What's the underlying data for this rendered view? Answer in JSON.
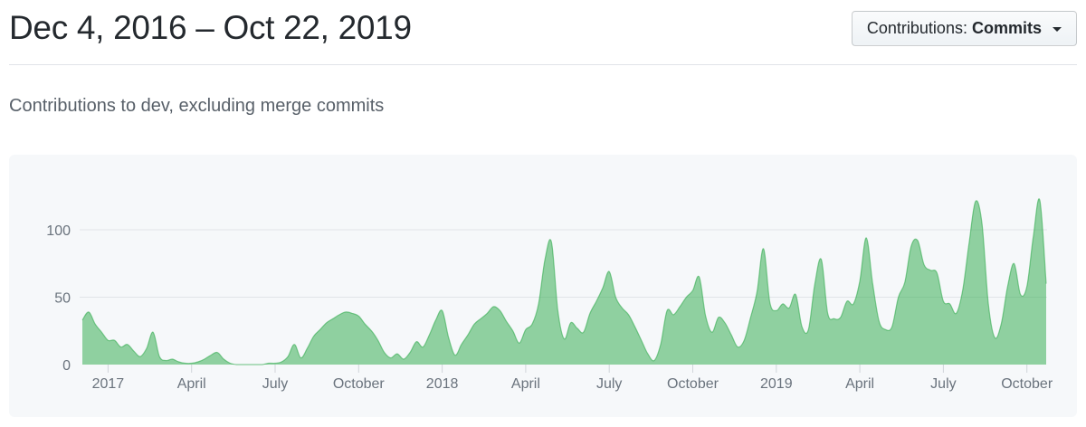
{
  "header": {
    "title": "Dec 4, 2016 – Oct 22, 2019",
    "contributions_dropdown": {
      "prefix": "Contributions:",
      "selected": "Commits"
    }
  },
  "subtitle": "Contributions to dev, excluding merge commits",
  "colors": {
    "area_green": "#28a745",
    "grid": "#e1e4e8",
    "tick": "#d1d5da",
    "axis_text": "#6a737d",
    "title_text": "#24292e",
    "subtitle_text": "#586069",
    "card_background": "#f6f8fa"
  },
  "chart_data": {
    "type": "area",
    "title": "Contributions to dev, excluding merge commits",
    "series_name": "Commits",
    "x_unit": "week",
    "date_range": {
      "start": "Dec 4, 2016",
      "end": "Oct 22, 2019"
    },
    "grid": true,
    "y_ticks": [
      0,
      50,
      100
    ],
    "ylim": [
      0,
      130
    ],
    "x_ticks": [
      {
        "label": "2017",
        "week": 4
      },
      {
        "label": "April",
        "week": 17
      },
      {
        "label": "July",
        "week": 30
      },
      {
        "label": "October",
        "week": 43
      },
      {
        "label": "2018",
        "week": 56
      },
      {
        "label": "April",
        "week": 69
      },
      {
        "label": "July",
        "week": 82
      },
      {
        "label": "October",
        "week": 95
      },
      {
        "label": "2019",
        "week": 108
      },
      {
        "label": "April",
        "week": 121
      },
      {
        "label": "July",
        "week": 134
      },
      {
        "label": "October",
        "week": 147
      }
    ],
    "weekly_commits": [
      33,
      39,
      30,
      24,
      18,
      18,
      13,
      15,
      10,
      6,
      12,
      24,
      6,
      3,
      4,
      2,
      1,
      1,
      2,
      4,
      7,
      9,
      4,
      1,
      0,
      0,
      0,
      0,
      0,
      1,
      1,
      2,
      6,
      15,
      5,
      12,
      21,
      26,
      31,
      34,
      37,
      39,
      38,
      36,
      30,
      25,
      18,
      9,
      5,
      8,
      4,
      9,
      17,
      13,
      22,
      33,
      40,
      20,
      7,
      15,
      22,
      30,
      34,
      38,
      43,
      40,
      32,
      25,
      16,
      26,
      30,
      45,
      78,
      91,
      40,
      19,
      31,
      27,
      24,
      38,
      47,
      57,
      69,
      50,
      42,
      37,
      28,
      18,
      8,
      3,
      15,
      40,
      37,
      43,
      50,
      55,
      65,
      36,
      24,
      35,
      31,
      22,
      13,
      18,
      35,
      54,
      86,
      46,
      40,
      45,
      42,
      52,
      28,
      26,
      60,
      78,
      38,
      34,
      35,
      47,
      45,
      62,
      94,
      60,
      32,
      26,
      28,
      50,
      61,
      88,
      92,
      74,
      70,
      68,
      47,
      45,
      38,
      55,
      90,
      121,
      105,
      45,
      20,
      30,
      58,
      75,
      52,
      58,
      95,
      122,
      60
    ]
  }
}
